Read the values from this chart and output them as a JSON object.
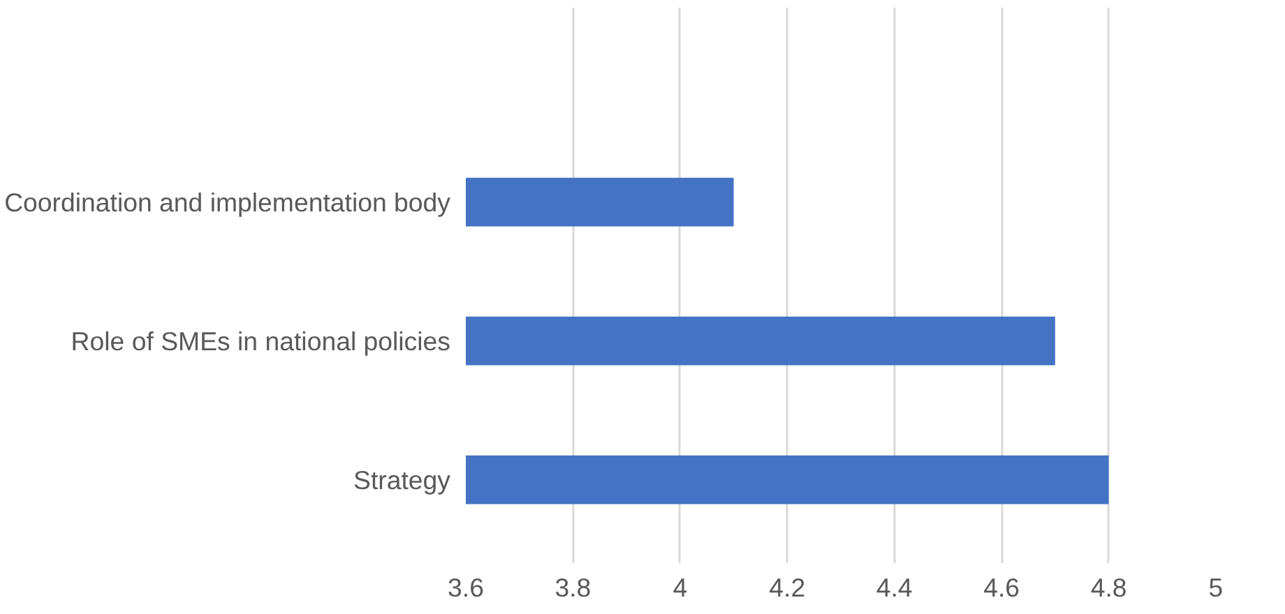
{
  "chart_data": {
    "type": "bar",
    "orientation": "horizontal",
    "categories": [
      "Coordination and implementation body",
      "Role of SMEs in national policies",
      "Strategy"
    ],
    "values": [
      4.1,
      4.7,
      4.8
    ],
    "color": "#4472c4",
    "xlim": [
      3.6,
      5
    ],
    "xticks": [
      3.6,
      3.8,
      4,
      4.2,
      4.4,
      4.6,
      4.8,
      5
    ],
    "grid": "x"
  }
}
